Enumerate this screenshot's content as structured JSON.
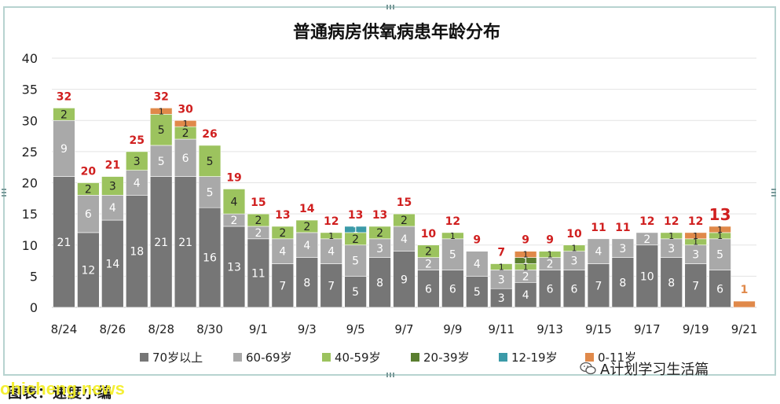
{
  "chart_data": {
    "type": "bar",
    "title": "普通病房供氧病患年龄分布",
    "categories": [
      "8/24",
      "8/25",
      "8/26",
      "8/27",
      "8/28",
      "8/29",
      "8/30",
      "8/31",
      "9/1",
      "9/2",
      "9/3",
      "9/4",
      "9/5",
      "9/6",
      "9/7",
      "9/8",
      "9/9",
      "9/10",
      "9/11",
      "9/12",
      "9/13",
      "9/14",
      "9/15",
      "9/16",
      "9/17",
      "9/18",
      "9/19",
      "9/20",
      "9/21"
    ],
    "x_tick_labels": [
      "8/24",
      "8/26",
      "8/28",
      "8/30",
      "9/1",
      "9/3",
      "9/5",
      "9/7",
      "9/9",
      "9/11",
      "9/13",
      "9/15",
      "9/17",
      "9/19",
      "9/21"
    ],
    "ylim": [
      0,
      40
    ],
    "yticks": [
      0,
      5,
      10,
      15,
      20,
      25,
      30,
      35,
      40
    ],
    "grid": true,
    "legend_position": "bottom",
    "stacked": true,
    "series": [
      {
        "name": "70岁以上",
        "color": "#767676",
        "values": [
          21,
          12,
          14,
          18,
          21,
          21,
          16,
          13,
          11,
          7,
          8,
          7,
          5,
          8,
          9,
          6,
          6,
          5,
          3,
          4,
          6,
          6,
          7,
          8,
          10,
          8,
          7,
          6,
          0
        ]
      },
      {
        "name": "60-69岁",
        "color": "#a9a9a9",
        "values": [
          9,
          6,
          4,
          4,
          5,
          6,
          5,
          2,
          2,
          4,
          4,
          4,
          5,
          3,
          4,
          2,
          5,
          4,
          3,
          2,
          2,
          3,
          4,
          3,
          2,
          3,
          3,
          5,
          0
        ]
      },
      {
        "name": "40-59岁",
        "color": "#9cc35e",
        "values": [
          2,
          2,
          3,
          3,
          5,
          2,
          5,
          4,
          2,
          2,
          2,
          1,
          2,
          2,
          2,
          2,
          1,
          0,
          1,
          1,
          1,
          1,
          0,
          0,
          0,
          1,
          1,
          1,
          0
        ]
      },
      {
        "name": "20-39岁",
        "color": "#5a7e2f",
        "values": [
          0,
          0,
          0,
          0,
          0,
          0,
          0,
          0,
          0,
          0,
          0,
          0,
          0,
          0,
          0,
          0,
          0,
          0,
          0,
          1,
          0,
          0,
          0,
          0,
          0,
          0,
          0,
          0,
          0
        ]
      },
      {
        "name": "12-19岁",
        "color": "#3b9aa8",
        "values": [
          0,
          0,
          0,
          0,
          0,
          0,
          0,
          0,
          0,
          0,
          0,
          0,
          1,
          0,
          0,
          0,
          0,
          0,
          0,
          0,
          0,
          0,
          0,
          0,
          0,
          0,
          0,
          0,
          0
        ]
      },
      {
        "name": "0-11岁",
        "color": "#e0894a",
        "values": [
          0,
          0,
          0,
          0,
          1,
          1,
          0,
          0,
          0,
          0,
          0,
          0,
          0,
          0,
          0,
          0,
          0,
          0,
          0,
          1,
          0,
          0,
          0,
          0,
          0,
          0,
          1,
          1,
          1
        ]
      }
    ],
    "totals": [
      32,
      20,
      21,
      25,
      32,
      30,
      26,
      19,
      15,
      13,
      14,
      12,
      13,
      13,
      15,
      10,
      12,
      9,
      7,
      9,
      9,
      10,
      11,
      11,
      12,
      12,
      12,
      13,
      1
    ],
    "segment_labels": [
      [
        "21",
        "9",
        "2",
        "",
        "",
        ""
      ],
      [
        "12",
        "6",
        "2",
        "",
        "",
        ""
      ],
      [
        "14",
        "4",
        "3",
        "",
        "",
        ""
      ],
      [
        "18",
        "4",
        "3",
        "",
        "",
        ""
      ],
      [
        "21",
        "5",
        "5",
        "",
        "",
        "1"
      ],
      [
        "21",
        "6",
        "2",
        "",
        "",
        "1"
      ],
      [
        "16",
        "5",
        "5",
        "",
        "",
        ""
      ],
      [
        "13",
        "2",
        "4",
        "",
        "",
        ""
      ],
      [
        "11",
        "2",
        "2",
        "",
        "",
        ""
      ],
      [
        "7",
        "4",
        "2",
        "",
        "",
        ""
      ],
      [
        "8",
        "4",
        "2",
        "",
        "",
        ""
      ],
      [
        "7",
        "4",
        "1",
        "",
        "",
        ""
      ],
      [
        "5",
        "5",
        "2",
        "",
        "1",
        ""
      ],
      [
        "8",
        "3",
        "2",
        "",
        "",
        ""
      ],
      [
        "9",
        "4",
        "2",
        "",
        "",
        ""
      ],
      [
        "6",
        "2",
        "2",
        "",
        "",
        ""
      ],
      [
        "6",
        "5",
        "1",
        "",
        "",
        ""
      ],
      [
        "5",
        "4",
        "",
        "",
        "",
        ""
      ],
      [
        "3",
        "3",
        "1",
        "",
        "",
        ""
      ],
      [
        "4",
        "2",
        "1",
        "1",
        "",
        "1"
      ],
      [
        "6",
        "2",
        "1",
        "",
        "",
        ""
      ],
      [
        "6",
        "3",
        "1",
        "",
        "",
        ""
      ],
      [
        "7",
        "4",
        "",
        "",
        "",
        ""
      ],
      [
        "8",
        "3",
        "",
        "",
        "",
        ""
      ],
      [
        "10",
        "2",
        "",
        "",
        "",
        ""
      ],
      [
        "8",
        "3",
        "1",
        "",
        "",
        ""
      ],
      [
        "7",
        "3",
        "1",
        "",
        "",
        "1"
      ],
      [
        "6",
        "5",
        "1",
        "",
        "",
        "1"
      ],
      [
        "",
        "",
        "",
        "",
        "",
        ""
      ]
    ]
  },
  "footer": {
    "caption": "图表：速度小编",
    "site_watermark": "ohicheng.news",
    "wechat_account": "A计划学习生活篇"
  }
}
